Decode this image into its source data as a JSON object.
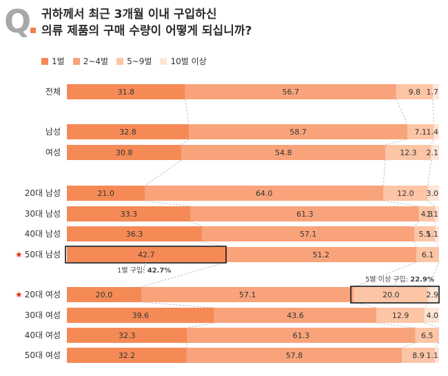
{
  "header": {
    "q_letter": "Q",
    "title_line1": "귀하께서 최근 3개월 이내 구입하신",
    "title_line2": "의류 제품의 구매 수량이 어떻게 되십니까?"
  },
  "colors": {
    "s1": "#f58a56",
    "s2": "#f9a37b",
    "s3": "#fbc5a6",
    "s4": "#fde4d4",
    "highlight_star": "#e8271b",
    "connector": "#bbbbbb"
  },
  "chart_data": {
    "type": "bar",
    "orientation": "horizontal",
    "stacked": true,
    "normalized": "100%",
    "categories": [
      "전체",
      "남성",
      "여성",
      "20대 남성",
      "30대 남성",
      "40대 남성",
      "50대 남성",
      "20대 여성",
      "30대 여성",
      "40대 여성",
      "50대 여성"
    ],
    "series": [
      {
        "name": "1벌",
        "values": [
          31.8,
          32.8,
          30.8,
          21.0,
          33.3,
          36.3,
          42.7,
          20.0,
          39.6,
          32.3,
          32.2
        ]
      },
      {
        "name": "2~4벌",
        "values": [
          56.7,
          58.7,
          54.8,
          64.0,
          61.3,
          57.1,
          51.2,
          57.1,
          43.6,
          61.3,
          57.8
        ]
      },
      {
        "name": "5~9벌",
        "values": [
          9.8,
          7.1,
          12.3,
          12.0,
          4.3,
          5.5,
          6.1,
          20.0,
          12.9,
          6.5,
          8.9
        ]
      },
      {
        "name": "10벌 이상",
        "values": [
          1.7,
          1.4,
          2.1,
          3.0,
          1.1,
          1.1,
          null,
          2.9,
          4.0,
          null,
          1.1
        ]
      }
    ],
    "labels": [
      [
        "31.8",
        "56.7",
        "9.8",
        "1.7"
      ],
      [
        "32.8",
        "58.7",
        "7.1",
        "1.4"
      ],
      [
        "30.8",
        "54.8",
        "12.3",
        "2.1"
      ],
      [
        "21.0",
        "64.0",
        "12.0",
        "3.0"
      ],
      [
        "33.3",
        "61.3",
        "4.3",
        "1.1"
      ],
      [
        "36.3",
        "57.1",
        "5.5",
        "1.1"
      ],
      [
        "42.7",
        "51.2",
        "6.1",
        ""
      ],
      [
        "20.0",
        "57.1",
        "20.0",
        "2.9"
      ],
      [
        "39.6",
        "43.6",
        "12.9",
        "4.0"
      ],
      [
        "32.3",
        "61.3",
        "6.5",
        ""
      ],
      [
        "32.2",
        "57.8",
        "8.9",
        "1.1"
      ]
    ],
    "starred_categories": [
      "50대 남성",
      "20대 여성"
    ],
    "star_glyph": "★",
    "annotations": [
      {
        "text_prefix": "1벌 구입: ",
        "text_value": "42.7%",
        "category": "50대 남성",
        "series": [
          0
        ]
      },
      {
        "text_prefix": "5벌 이상 구입: ",
        "text_value": "22.9%",
        "category": "20대 여성",
        "series": [
          2,
          3
        ]
      }
    ],
    "xlim": [
      0,
      100
    ]
  }
}
